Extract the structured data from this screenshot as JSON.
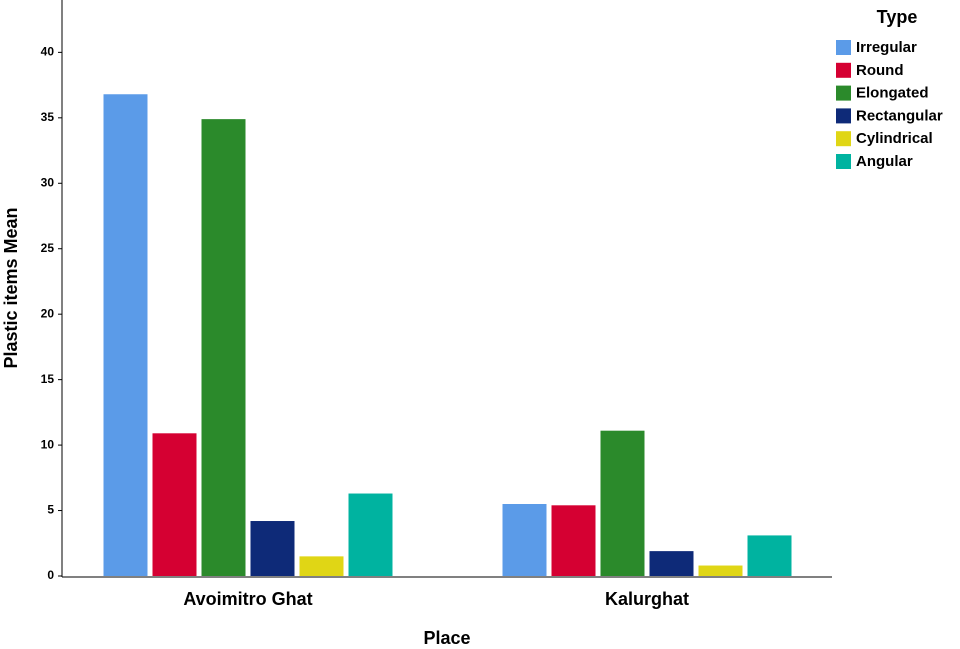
{
  "chart_data": {
    "type": "bar",
    "x_label": "Place",
    "y_label": "Plastic items Mean",
    "legend_title": "Type",
    "categories": [
      "Avoimitro Ghat",
      "Kalurghat"
    ],
    "series": [
      {
        "name": "Irregular",
        "color": "#5b9be8",
        "values": [
          36.8,
          5.5
        ]
      },
      {
        "name": "Round",
        "color": "#d50032",
        "values": [
          10.9,
          5.4
        ]
      },
      {
        "name": "Elongated",
        "color": "#2b8a2b",
        "values": [
          34.9,
          11.1
        ]
      },
      {
        "name": "Rectangular",
        "color": "#0e2a78",
        "values": [
          4.2,
          1.9
        ]
      },
      {
        "name": "Cylindrical",
        "color": "#e0d615",
        "values": [
          1.5,
          0.8
        ]
      },
      {
        "name": "Angular",
        "color": "#00b3a0",
        "values": [
          6.3,
          3.1
        ]
      }
    ],
    "ylim": [
      0,
      44
    ],
    "yticks": [
      0,
      5,
      10,
      15,
      20,
      25,
      30,
      35,
      40
    ],
    "legend_position": "upper right"
  }
}
